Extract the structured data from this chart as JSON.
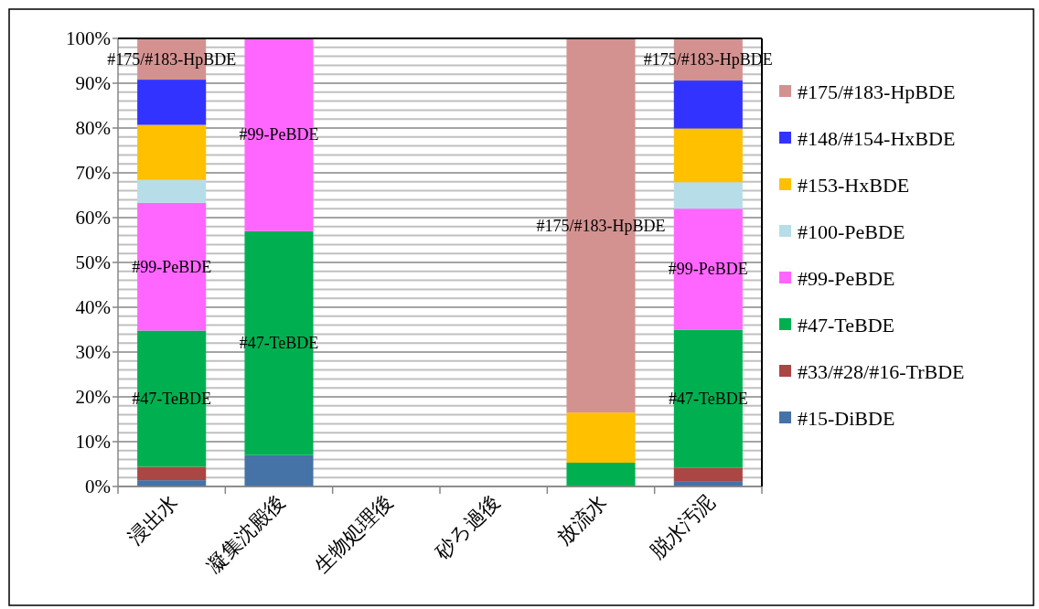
{
  "chart_data": {
    "type": "bar",
    "stacked": true,
    "categories": [
      "浸出水",
      "凝集沈殿後",
      "生物処理後",
      "砂ろ過後",
      "放流水",
      "脱水汚泥"
    ],
    "series": [
      {
        "name": "#15-DiBDE",
        "color": "#4572a7",
        "values": [
          1.4,
          7.0,
          0,
          0,
          0,
          1.2
        ]
      },
      {
        "name": "#33/#28/#16-TrBDE",
        "color": "#aa4643",
        "values": [
          3.0,
          0,
          0,
          0,
          0,
          3.0
        ]
      },
      {
        "name": "#47-TeBDE",
        "color": "#00b050",
        "values": [
          30.4,
          50.0,
          0,
          0,
          5.3,
          30.8
        ]
      },
      {
        "name": "#99-PeBDE",
        "color": "#ff66ff",
        "values": [
          28.5,
          43.0,
          0,
          0,
          0,
          27.0
        ]
      },
      {
        "name": "#100-PeBDE",
        "color": "#b7dde8",
        "values": [
          5.1,
          0,
          0,
          0,
          0,
          5.9
        ]
      },
      {
        "name": "#153-HxBDE",
        "color": "#ffc000",
        "values": [
          12.3,
          0,
          0,
          0,
          11.2,
          12.0
        ]
      },
      {
        "name": "#148/#154-HxBDE",
        "color": "#3333ff",
        "values": [
          10.1,
          0,
          0,
          0,
          0,
          10.7
        ]
      },
      {
        "name": "#175/#183-HpBDE",
        "color": "#d39290",
        "values": [
          9.2,
          0,
          0,
          0,
          83.5,
          9.4
        ]
      }
    ],
    "ylim": [
      0,
      100
    ],
    "yticks": [
      {
        "value": 0,
        "label": "0%"
      },
      {
        "value": 2,
        "label": null
      },
      {
        "value": 4,
        "label": null
      },
      {
        "value": 6,
        "label": null
      },
      {
        "value": 8,
        "label": null
      },
      {
        "value": 10,
        "label": "10%"
      },
      {
        "value": 12,
        "label": null
      },
      {
        "value": 14,
        "label": null
      },
      {
        "value": 16,
        "label": null
      },
      {
        "value": 18,
        "label": null
      },
      {
        "value": 20,
        "label": "20%"
      },
      {
        "value": 22,
        "label": null
      },
      {
        "value": 24,
        "label": null
      },
      {
        "value": 26,
        "label": null
      },
      {
        "value": 28,
        "label": null
      },
      {
        "value": 30,
        "label": "30%"
      },
      {
        "value": 32,
        "label": null
      },
      {
        "value": 34,
        "label": null
      },
      {
        "value": 36,
        "label": null
      },
      {
        "value": 38,
        "label": null
      },
      {
        "value": 40,
        "label": "40%"
      },
      {
        "value": 42,
        "label": null
      },
      {
        "value": 44,
        "label": null
      },
      {
        "value": 46,
        "label": null
      },
      {
        "value": 48,
        "label": null
      },
      {
        "value": 50,
        "label": "50%"
      },
      {
        "value": 52,
        "label": null
      },
      {
        "value": 54,
        "label": null
      },
      {
        "value": 56,
        "label": null
      },
      {
        "value": 58,
        "label": null
      },
      {
        "value": 60,
        "label": "60%"
      },
      {
        "value": 62,
        "label": null
      },
      {
        "value": 64,
        "label": null
      },
      {
        "value": 66,
        "label": null
      },
      {
        "value": 68,
        "label": null
      },
      {
        "value": 70,
        "label": "70%"
      },
      {
        "value": 72,
        "label": null
      },
      {
        "value": 74,
        "label": null
      },
      {
        "value": 76,
        "label": null
      },
      {
        "value": 78,
        "label": null
      },
      {
        "value": 80,
        "label": "80%"
      },
      {
        "value": 82,
        "label": null
      },
      {
        "value": 84,
        "label": null
      },
      {
        "value": 86,
        "label": null
      },
      {
        "value": 88,
        "label": null
      },
      {
        "value": 90,
        "label": "90%"
      },
      {
        "value": 92,
        "label": null
      },
      {
        "value": 94,
        "label": null
      },
      {
        "value": 96,
        "label": null
      },
      {
        "value": 98,
        "label": null
      },
      {
        "value": 100,
        "label": "100%"
      }
    ],
    "grid": "y",
    "legend": "right",
    "annotations": [
      "#175/#183-HpBDE",
      "#99-PeBDE",
      "#47-TeBDE",
      "#99-PeBDE",
      "#47-TeBDE",
      "#175/#183-HpBDE",
      "#175/#183-HpBDE",
      "#99-PeBDE",
      "#47-TeBDE"
    ]
  }
}
